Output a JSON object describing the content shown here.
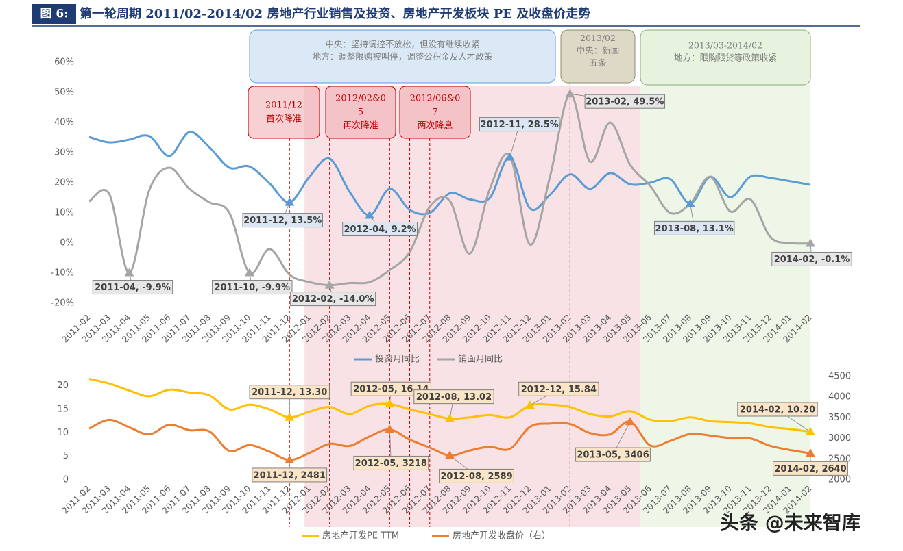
{
  "title_tag": "图 6:",
  "title": "第一轮周期 2011/02-2014/02 房地产行业销售及投资、房地产开发板块 PE 及收盘价走势",
  "policy_boxes": [
    {
      "lines": [
        "中央：坚持调控不放松，但没有继续收紧",
        "地方：调整限购被叫停，调整公积金及人才政策"
      ]
    },
    {
      "lines": [
        "2013/02",
        "中央：新国",
        "五条"
      ]
    },
    {
      "lines": [
        "2013/03-2014/02",
        "地方：限购限贷等政策收紧"
      ]
    }
  ],
  "event_boxes": [
    {
      "lines": [
        "2011/12",
        "首次降准"
      ]
    },
    {
      "lines": [
        "2012/02&0",
        "5",
        "再次降准"
      ]
    },
    {
      "lines": [
        "2012/06&0",
        "7",
        "两次降息"
      ]
    }
  ],
  "watermark": "头条 @未来智库",
  "chart_data": [
    {
      "type": "line",
      "categories": [
        "2011-02",
        "2011-03",
        "2011-04",
        "2011-05",
        "2011-06",
        "2011-07",
        "2011-08",
        "2011-09",
        "2011-10",
        "2011-11",
        "2011-12",
        "2012-01",
        "2012-02",
        "2012-03",
        "2012-04",
        "2012-05",
        "2012-06",
        "2012-07",
        "2012-08",
        "2012-09",
        "2012-10",
        "2012-11",
        "2012-12",
        "2013-01",
        "2013-02",
        "2013-03",
        "2013-04",
        "2013-05",
        "2013-06",
        "2013-07",
        "2013-08",
        "2013-09",
        "2013-10",
        "2013-11",
        "2013-12",
        "2014-01",
        "2014-02"
      ],
      "ylim": [
        -20,
        60
      ],
      "yticks": [
        {
          "value": -20,
          "label": "-20%"
        },
        {
          "value": -10,
          "label": "-10%"
        },
        {
          "value": 0,
          "label": "0%"
        },
        {
          "value": 10,
          "label": "10%"
        },
        {
          "value": 20,
          "label": "20%"
        },
        {
          "value": 30,
          "label": "30%"
        },
        {
          "value": 40,
          "label": "40%"
        },
        {
          "value": 50,
          "label": "50%"
        },
        {
          "value": 60,
          "label": "60%"
        }
      ],
      "series": [
        {
          "name": "投资月同比",
          "color": "#5b9bd5",
          "values": [
            35.2,
            33.4,
            34.3,
            35.5,
            28.9,
            36.8,
            31.8,
            25,
            25.4,
            19.8,
            13.5,
            22,
            28,
            17,
            9.2,
            18,
            11,
            10,
            16.5,
            14.5,
            15,
            28.5,
            11.5,
            16,
            22.8,
            18,
            23.2,
            19.5,
            20,
            21.2,
            13.1,
            22,
            15.2,
            22,
            21.6,
            20.5,
            19.3
          ],
          "value_labels": [
            null,
            null,
            null,
            null,
            null,
            null,
            null,
            null,
            null,
            null,
            "2011-12, 13.5%",
            null,
            null,
            null,
            "2012-04, 9.2%",
            null,
            null,
            null,
            null,
            null,
            null,
            "2012-11, 28.5%",
            null,
            null,
            null,
            null,
            null,
            null,
            null,
            null,
            "2013-08, 13.1%",
            null,
            null,
            null,
            null,
            null,
            null
          ]
        },
        {
          "name": "销面月同比",
          "color": "#a5a5a5",
          "values": [
            13.8,
            16.3,
            -9.9,
            17.5,
            25,
            18,
            13.5,
            10,
            -9.9,
            -2,
            -10.5,
            -13,
            -14,
            -13.3,
            -13,
            -9,
            -3,
            12,
            14,
            -3.5,
            18,
            29,
            -0.5,
            22,
            49.5,
            27,
            40,
            26,
            19,
            10,
            13,
            22,
            10.5,
            14.5,
            2,
            0,
            -0.1
          ],
          "value_labels": [
            null,
            null,
            "2011-04, -9.9%",
            null,
            null,
            null,
            null,
            null,
            "2011-10, -9.9%",
            null,
            null,
            null,
            "2012-02, -14.0%",
            null,
            null,
            null,
            null,
            null,
            null,
            null,
            null,
            null,
            null,
            null,
            "2013-02, 49.5%",
            null,
            null,
            null,
            null,
            null,
            null,
            null,
            null,
            null,
            null,
            null,
            "2014-02, -0.1%"
          ]
        }
      ]
    },
    {
      "type": "line",
      "categories": [
        "2011-02",
        "2011-03",
        "2011-04",
        "2011-05",
        "2011-06",
        "2011-07",
        "2011-08",
        "2011-09",
        "2011-10",
        "2011-11",
        "2011-12",
        "2012-01",
        "2012-02",
        "2012-03",
        "2012-04",
        "2012-05",
        "2012-06",
        "2012-07",
        "2012-08",
        "2012-09",
        "2012-10",
        "2012-11",
        "2012-12",
        "2013-01",
        "2013-02",
        "2013-03",
        "2013-04",
        "2013-05",
        "2013-06",
        "2013-07",
        "2013-08",
        "2013-09",
        "2013-10",
        "2013-11",
        "2013-12",
        "2014-01",
        "2014-02"
      ],
      "ylim": [
        0,
        22
      ],
      "yticks": [
        0,
        5,
        10,
        15,
        20
      ],
      "y2lim": [
        2000,
        4500
      ],
      "y2ticks": [
        2000,
        2500,
        3000,
        3500,
        4000,
        4500
      ],
      "series": [
        {
          "name": "房地产开发PE TTM",
          "color": "#ffc000",
          "values": [
            21.5,
            20.5,
            19,
            17.8,
            19.2,
            18.6,
            18,
            15,
            16,
            15,
            13.3,
            14.5,
            15.5,
            14,
            15.8,
            16.14,
            15,
            14,
            13.02,
            13.3,
            13.8,
            13.3,
            15.84,
            16,
            15.5,
            14,
            13.5,
            14.6,
            12.8,
            12.5,
            13.3,
            12.5,
            12.3,
            12,
            11.2,
            10.8,
            10.2
          ],
          "value_labels": [
            null,
            null,
            null,
            null,
            null,
            null,
            null,
            null,
            null,
            null,
            "2011-12, 13.30",
            null,
            null,
            null,
            null,
            "2012-05, 16.14",
            null,
            null,
            "2012-08, 13.02",
            null,
            null,
            null,
            "2012-12, 15.84",
            null,
            null,
            null,
            null,
            null,
            null,
            null,
            null,
            null,
            null,
            null,
            null,
            null,
            "2014-02, 10.20"
          ]
        },
        {
          "name": "房地产开发收盘价（右）",
          "color": "#ed7d31",
          "axis": "y2",
          "values": [
            3240,
            3450,
            3270,
            3100,
            3330,
            3200,
            3170,
            2700,
            2840,
            2680,
            2481,
            2650,
            2870,
            2820,
            3050,
            3218,
            2970,
            2780,
            2589,
            2710,
            2800,
            2750,
            3280,
            3360,
            3350,
            3130,
            3100,
            3406,
            2830,
            2940,
            3110,
            3070,
            3010,
            3000,
            2820,
            2720,
            2640
          ],
          "value_labels": [
            null,
            null,
            null,
            null,
            null,
            null,
            null,
            null,
            null,
            null,
            "2011-12, 2481",
            null,
            null,
            null,
            null,
            "2012-05, 3218",
            null,
            null,
            "2012-08, 2589",
            null,
            null,
            null,
            null,
            null,
            null,
            null,
            null,
            "2013-05, 3406",
            null,
            null,
            null,
            null,
            null,
            null,
            null,
            null,
            "2014-02, 2640"
          ]
        }
      ]
    }
  ]
}
